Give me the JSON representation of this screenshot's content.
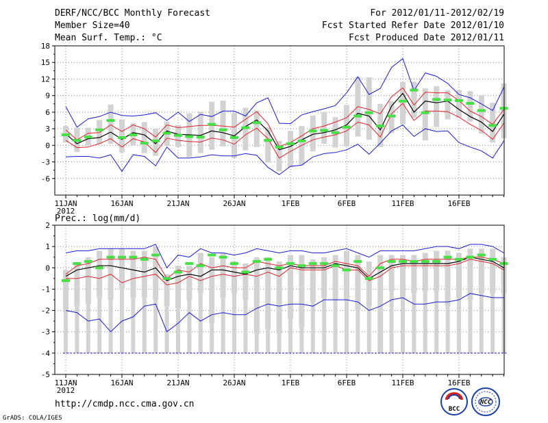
{
  "header": {
    "title": "DERF/NCC/BCC Monthly Forecast",
    "member_size": "Member Size=40",
    "variable": "Mean Surf. Temp.: °C",
    "period": "For 2012/01/11-2012/02/19",
    "refer_date": "Fcst Started Refer Date 2012/01/10",
    "produced_date": "Fcst Produced Date 2012/01/11"
  },
  "footer": {
    "url": "http://cmdp.ncc.cma.gov.cn",
    "credit": "GrADS: COLA/IGES",
    "logo_left": "BCC",
    "logo_right": "NCC"
  },
  "colors": {
    "box": "#d3d3d3",
    "median": "#000000",
    "mean_marker": "#44e044",
    "spread": "#e0202a",
    "range": "#1a1ad0",
    "grid": "#808080"
  },
  "chart_data": [
    {
      "type": "line",
      "title": "Mean Surf. Temp.: °C",
      "ylim": [
        -9,
        18
      ],
      "yticks": [
        -6,
        -3,
        0,
        3,
        6,
        9,
        12,
        15,
        18
      ],
      "x_ticks": [
        "11JAN",
        "16JAN",
        "21JAN",
        "26JAN",
        "1FEB",
        "6FEB",
        "11FEB",
        "16FEB"
      ],
      "x_year": "2012",
      "days": 40,
      "series": [
        {
          "name": "max",
          "values": [
            7,
            3.3,
            4.8,
            5.2,
            6,
            5.4,
            5.3,
            5.5,
            5.9,
            4.5,
            6,
            4.3,
            5.6,
            5.2,
            6.2,
            6.2,
            5.3,
            7.7,
            8.6,
            4,
            3.9,
            5.5,
            6.1,
            6.6,
            7.2,
            9.5,
            12.4,
            9.2,
            10.3,
            14.1,
            15.7,
            9.9,
            13.1,
            12.5,
            11.2,
            9.2,
            8.6,
            7.5,
            6.3,
            10.5
          ]
        },
        {
          "name": "upper",
          "values": [
            2.8,
            1,
            2.2,
            2.3,
            3.7,
            2.5,
            3.7,
            3,
            1.5,
            3.7,
            3.2,
            3.4,
            3.6,
            3.6,
            3.5,
            3.3,
            4.7,
            6.1,
            3.9,
            -0.2,
            0.5,
            1.7,
            3,
            3.5,
            4.2,
            5,
            7,
            6.5,
            5.7,
            8.8,
            10.4,
            7.3,
            9.6,
            9.5,
            9.5,
            8.1,
            6.2,
            5.2,
            3.8,
            6.5
          ]
        },
        {
          "name": "median",
          "values": [
            2.1,
            0.3,
            1.2,
            1.4,
            2.4,
            1.1,
            2.3,
            1.9,
            0.3,
            2.6,
            2,
            1.9,
            1.8,
            2.6,
            2.3,
            1.7,
            3.4,
            4.6,
            2.6,
            -0.8,
            -0.2,
            1,
            2,
            2.3,
            2.8,
            3.7,
            5.8,
            5.3,
            2.8,
            7.1,
            9.4,
            6,
            8,
            7.7,
            8,
            6.5,
            5.2,
            4.2,
            2.5,
            5.6
          ]
        },
        {
          "name": "lower",
          "values": [
            0.9,
            -0.4,
            -0.3,
            0.3,
            1.2,
            -0.3,
            1.2,
            0.6,
            -1.3,
            1.3,
            0.9,
            0.7,
            0.6,
            1.3,
            1,
            0.2,
            1.9,
            3.1,
            1.2,
            -2.3,
            -1.1,
            0,
            1,
            1.5,
            1.9,
            2.6,
            4.2,
            3.7,
            1.5,
            5.7,
            7.6,
            4.5,
            6.2,
            6.2,
            6.1,
            5.1,
            3.8,
            2.7,
            1.1,
            4
          ]
        },
        {
          "name": "min",
          "values": [
            -2.1,
            -2,
            -2,
            -2.3,
            -1.7,
            -4.7,
            -1.7,
            -2,
            -3.7,
            -0.3,
            -2.3,
            -2.3,
            -2.1,
            -1.7,
            -1.9,
            -1.9,
            -1.5,
            -1.8,
            -4,
            -5.3,
            -3.8,
            -3.6,
            -2.1,
            -1.5,
            -1.3,
            -0.8,
            0.2,
            -1.6,
            0.4,
            2.6,
            3.7,
            1.6,
            3,
            2.5,
            2.6,
            0.5,
            -0.3,
            -1,
            -2.3,
            0.8
          ]
        },
        {
          "name": "mean",
          "values": [
            1.9,
            0.9,
            1.5,
            2.8,
            4.5,
            1.4,
            1.9,
            0.4,
            0.8,
            2.2,
            1.8,
            1.6,
            1.5,
            3.8,
            2.8,
            1.4,
            3.2,
            4.1,
            0.9,
            -0.3,
            0.3,
            0.8,
            2.6,
            2.7,
            2.3,
            3.3,
            5.3,
            5.9,
            3.5,
            5.3,
            8,
            10,
            5.9,
            8.3,
            8.2,
            8.1,
            7.6,
            6.3,
            3.6,
            6.7
          ]
        },
        {
          "name": "box_high",
          "values": [
            3.5,
            3.2,
            3.2,
            4.6,
            7.4,
            4.7,
            4,
            4.2,
            3,
            4.3,
            3.7,
            5.8,
            6.1,
            7.9,
            8.1,
            5.9,
            6.8,
            6.3,
            3.3,
            0.8,
            2.6,
            3.5,
            5.4,
            6,
            5.1,
            7.3,
            12.4,
            12.3,
            7.5,
            8,
            11.5,
            11.5,
            10.3,
            10.7,
            10,
            10,
            9.8,
            9.1,
            7.7,
            11.2
          ]
        },
        {
          "name": "box_low",
          "values": [
            0.5,
            -1.2,
            0,
            0.2,
            0.3,
            -1.3,
            0,
            -1.4,
            -1.9,
            -0.1,
            -0.3,
            -2.1,
            -1.4,
            -0.8,
            -0.2,
            -2.3,
            -0.9,
            -0.3,
            -3.1,
            -4.7,
            -4,
            -3.6,
            -1.1,
            0.3,
            -0.4,
            -0.2,
            1.6,
            1,
            -0.3,
            2.2,
            3.8,
            5,
            0.9,
            3.3,
            4.7,
            5,
            4.3,
            2.1,
            0.5,
            1.3
          ]
        }
      ]
    },
    {
      "type": "line",
      "title": "Prec.: log(mm/d)",
      "ylim": [
        -5,
        2
      ],
      "yticks": [
        -5,
        -4,
        -3,
        -2,
        -1,
        0,
        1,
        2
      ],
      "x_ticks": [
        "11JAN",
        "16JAN",
        "21JAN",
        "26JAN",
        "1FEB",
        "6FEB",
        "11FEB",
        "16FEB"
      ],
      "x_year": "2012",
      "days": 40,
      "series": [
        {
          "name": "max",
          "values": [
            0.7,
            0.8,
            0.8,
            0.9,
            0.9,
            0.9,
            0.9,
            0.9,
            1.1,
            0,
            0.6,
            0.5,
            0.9,
            0.7,
            0.7,
            0.6,
            0.7,
            0.9,
            0.8,
            0.7,
            0.8,
            0.8,
            0.7,
            0.7,
            0.8,
            0.9,
            0.7,
            0.5,
            0.8,
            0.8,
            0.8,
            0.8,
            0.9,
            1,
            1,
            0.9,
            1.1,
            1.1,
            1,
            0.7
          ]
        },
        {
          "name": "upper",
          "values": [
            -0.3,
            0.1,
            0.2,
            0.4,
            0.4,
            0.4,
            0.4,
            0.5,
            0.4,
            -0.5,
            -0.1,
            -0.2,
            0.2,
            0,
            0.1,
            0,
            0,
            0.3,
            0.2,
            0.1,
            0.2,
            0.1,
            0.1,
            0.1,
            0.3,
            0.2,
            0.1,
            -0.4,
            0.2,
            0.4,
            0.4,
            0.3,
            0.4,
            0.4,
            0.4,
            0.4,
            0.5,
            0.5,
            0.4,
            0.2
          ]
        },
        {
          "name": "median",
          "values": [
            -0.4,
            -0.1,
            0,
            0.1,
            0.1,
            0,
            -0.1,
            -0.2,
            0,
            -0.6,
            -0.4,
            -0.3,
            -0.4,
            -0.1,
            -0.1,
            -0.2,
            -0.3,
            -0.1,
            0,
            -0.1,
            0.1,
            0,
            0,
            0,
            0.2,
            0.1,
            0,
            -0.5,
            -0.2,
            0.1,
            0.2,
            0.2,
            0.2,
            0.2,
            0.2,
            0.3,
            0.5,
            0.4,
            0.3,
            0
          ]
        },
        {
          "name": "lower",
          "values": [
            -0.5,
            -0.5,
            -0.4,
            -0.5,
            -0.3,
            -0.7,
            -0.5,
            -0.4,
            -0.3,
            -0.8,
            -0.7,
            -0.4,
            -0.6,
            -0.4,
            -0.3,
            -0.4,
            -0.3,
            -0.4,
            -0.2,
            -0.4,
            0,
            -0.1,
            -0.1,
            -0.1,
            0.1,
            -0.1,
            -0.1,
            -0.6,
            -0.4,
            0,
            0.1,
            0.1,
            0.1,
            0.1,
            0.1,
            0.2,
            0.4,
            0.3,
            0.2,
            -0.1
          ]
        },
        {
          "name": "min",
          "values": [
            -2,
            -2.1,
            -2.5,
            -2.4,
            -3,
            -2.5,
            -2.3,
            -1.8,
            -1.7,
            -3,
            -2.6,
            -2.1,
            -2.5,
            -2.2,
            -2.1,
            -2.2,
            -2.2,
            -1.9,
            -1.7,
            -1.8,
            -1.7,
            -1.7,
            -1.8,
            -1.5,
            -1.5,
            -1.5,
            -1.6,
            -2,
            -1.8,
            -1.5,
            -1.4,
            -1.7,
            -1.7,
            -1.6,
            -1.6,
            -1.5,
            -1.2,
            -1.3,
            -1.4,
            -1.4
          ]
        },
        {
          "name": "mean",
          "values": [
            -0.6,
            0.2,
            0.3,
            0,
            0.5,
            0.5,
            0.5,
            0.4,
            0.6,
            -0.5,
            -0.2,
            0.2,
            0.1,
            0.6,
            0.5,
            0.2,
            -0.2,
            0.3,
            0.4,
            0,
            0.2,
            0.1,
            0.2,
            0.2,
            0.1,
            -0.1,
            0.3,
            -0.5,
            0,
            0.3,
            0.3,
            0.3,
            0.3,
            0.3,
            0.5,
            0.4,
            0.5,
            0.6,
            0.4,
            0.2
          ]
        },
        {
          "name": "box_high",
          "values": [
            -0.1,
            0.2,
            0.5,
            0.8,
            0.9,
            0.9,
            0.8,
            0.8,
            1,
            -0.3,
            0.1,
            0.1,
            0.7,
            0.5,
            0.7,
            0.3,
            0.2,
            0.5,
            0.5,
            0.3,
            0.6,
            0.6,
            0.4,
            0.5,
            0.6,
            0.8,
            0.6,
            0.3,
            0.6,
            0.6,
            0.6,
            0.6,
            0.7,
            0.8,
            0.8,
            0.7,
            0.9,
            0.9,
            0.9,
            0.5
          ]
        },
        {
          "name": "box_low",
          "values": [
            -2.1,
            -1.8,
            -1.7,
            -1.4,
            -1.5,
            -1,
            -1.4,
            -1.4,
            -1.5,
            -1.8,
            -1.9,
            -1.5,
            -1.2,
            -2.6,
            -1.4,
            -1.2,
            -1.5,
            -3.1,
            -2.9,
            -3.1,
            -2.4,
            -2.8,
            -1.6,
            -1.4,
            -1.5,
            -1.5,
            -2,
            -1.8,
            -4,
            -1.1,
            -1.4,
            -1.2,
            -1.1,
            -1.1,
            -1.8,
            -1.4,
            -1.5,
            -1.2,
            -1.2,
            -1.2
          ]
        },
        {
          "name": "box_min_floor",
          "values": [
            -4,
            -4,
            -4,
            -4,
            -4,
            -4,
            -4,
            -4,
            -4,
            -4,
            -4,
            -4,
            -4,
            -4,
            -4,
            -4,
            -4,
            -4,
            -4,
            -4,
            -4,
            -4,
            -4,
            -4,
            -4,
            -4,
            -4,
            -4,
            -4,
            -4,
            -4,
            -4,
            -4,
            -4,
            -4,
            -4,
            -4,
            -4,
            -4,
            -4
          ]
        }
      ]
    }
  ]
}
